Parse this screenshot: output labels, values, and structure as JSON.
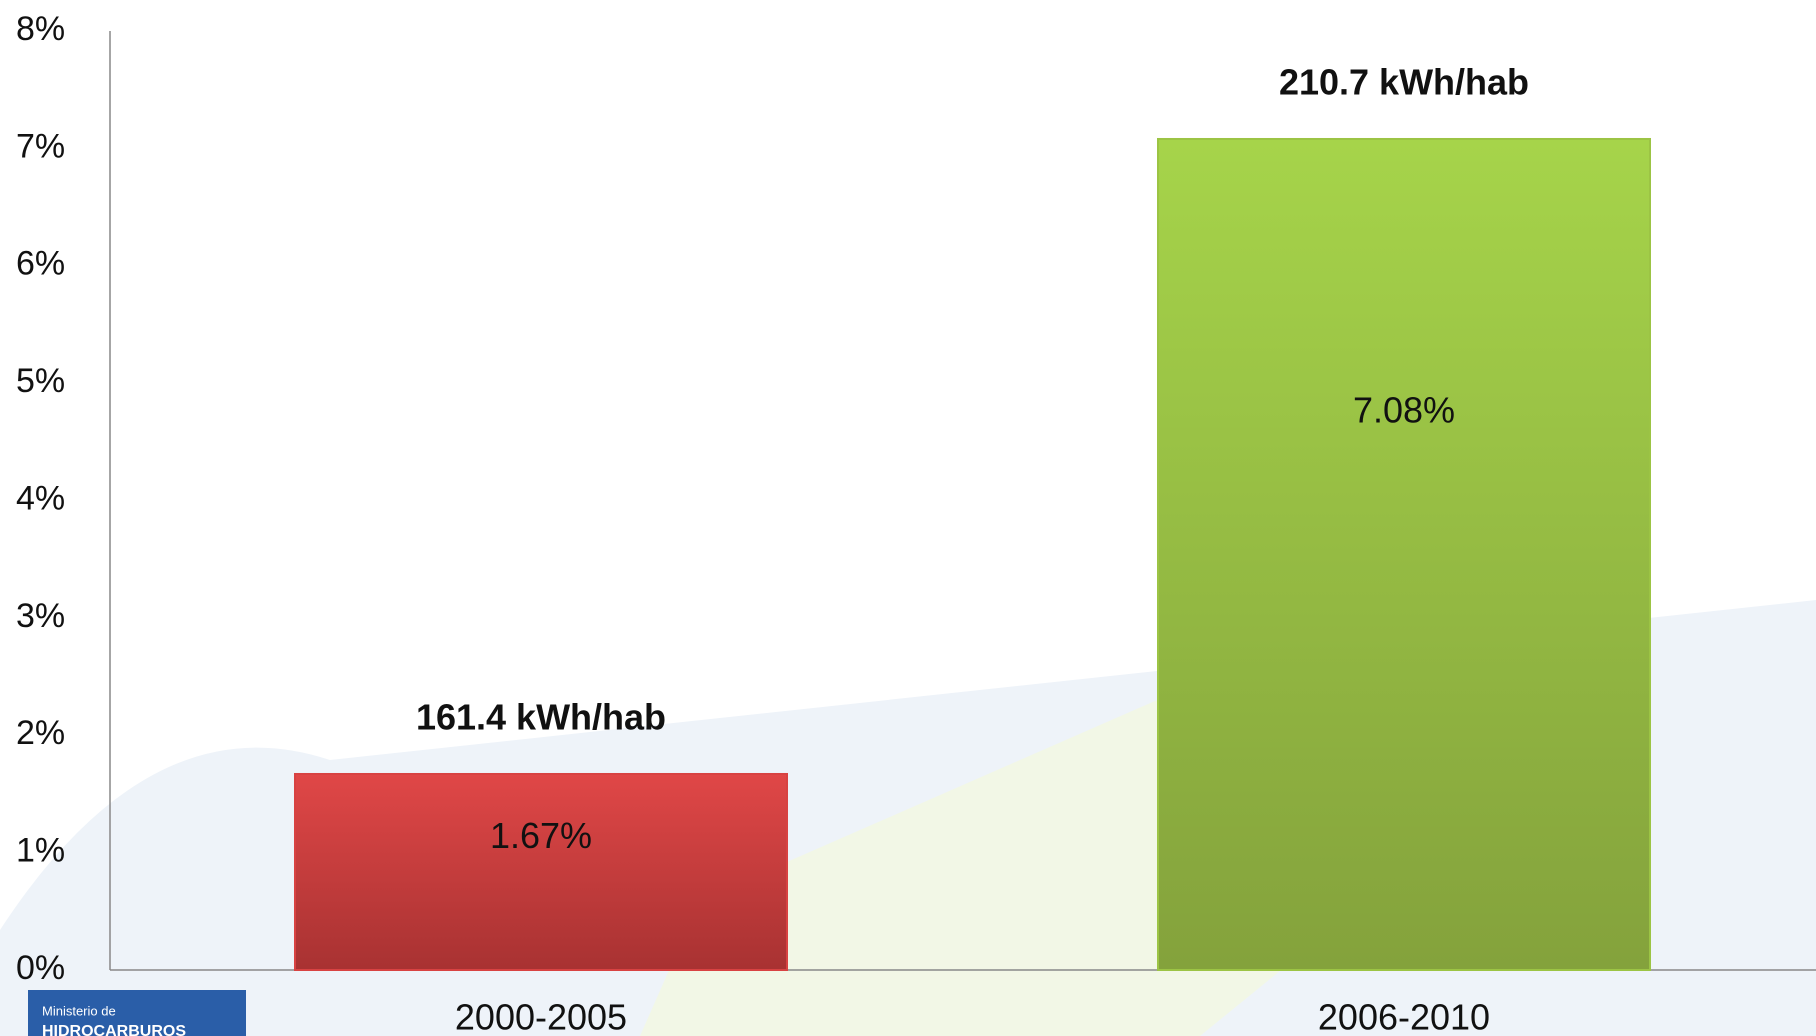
{
  "chart_data": {
    "type": "bar",
    "categories": [
      "2000-2005",
      "2006-2010"
    ],
    "values": [
      1.67,
      7.08
    ],
    "value_labels": [
      "1.67%",
      "7.08%"
    ],
    "annotations": [
      "161.4 kWh/hab",
      "210.7 kWh/hab"
    ],
    "colors": [
      "#d84242",
      "#9cc444"
    ],
    "ylim": [
      0,
      8
    ],
    "yticks": [
      {
        "value": 0,
        "label": "0%"
      },
      {
        "value": 1,
        "label": "1%"
      },
      {
        "value": 2,
        "label": "2%"
      },
      {
        "value": 3,
        "label": "3%"
      },
      {
        "value": 4,
        "label": "4%"
      },
      {
        "value": 5,
        "label": "5%"
      },
      {
        "value": 6,
        "label": "6%"
      },
      {
        "value": 7,
        "label": "7%"
      },
      {
        "value": 8,
        "label": "8%"
      }
    ],
    "grid": false
  },
  "logo": {
    "line1": "Ministerio de",
    "line2": "HIDROCARBUROS"
  }
}
